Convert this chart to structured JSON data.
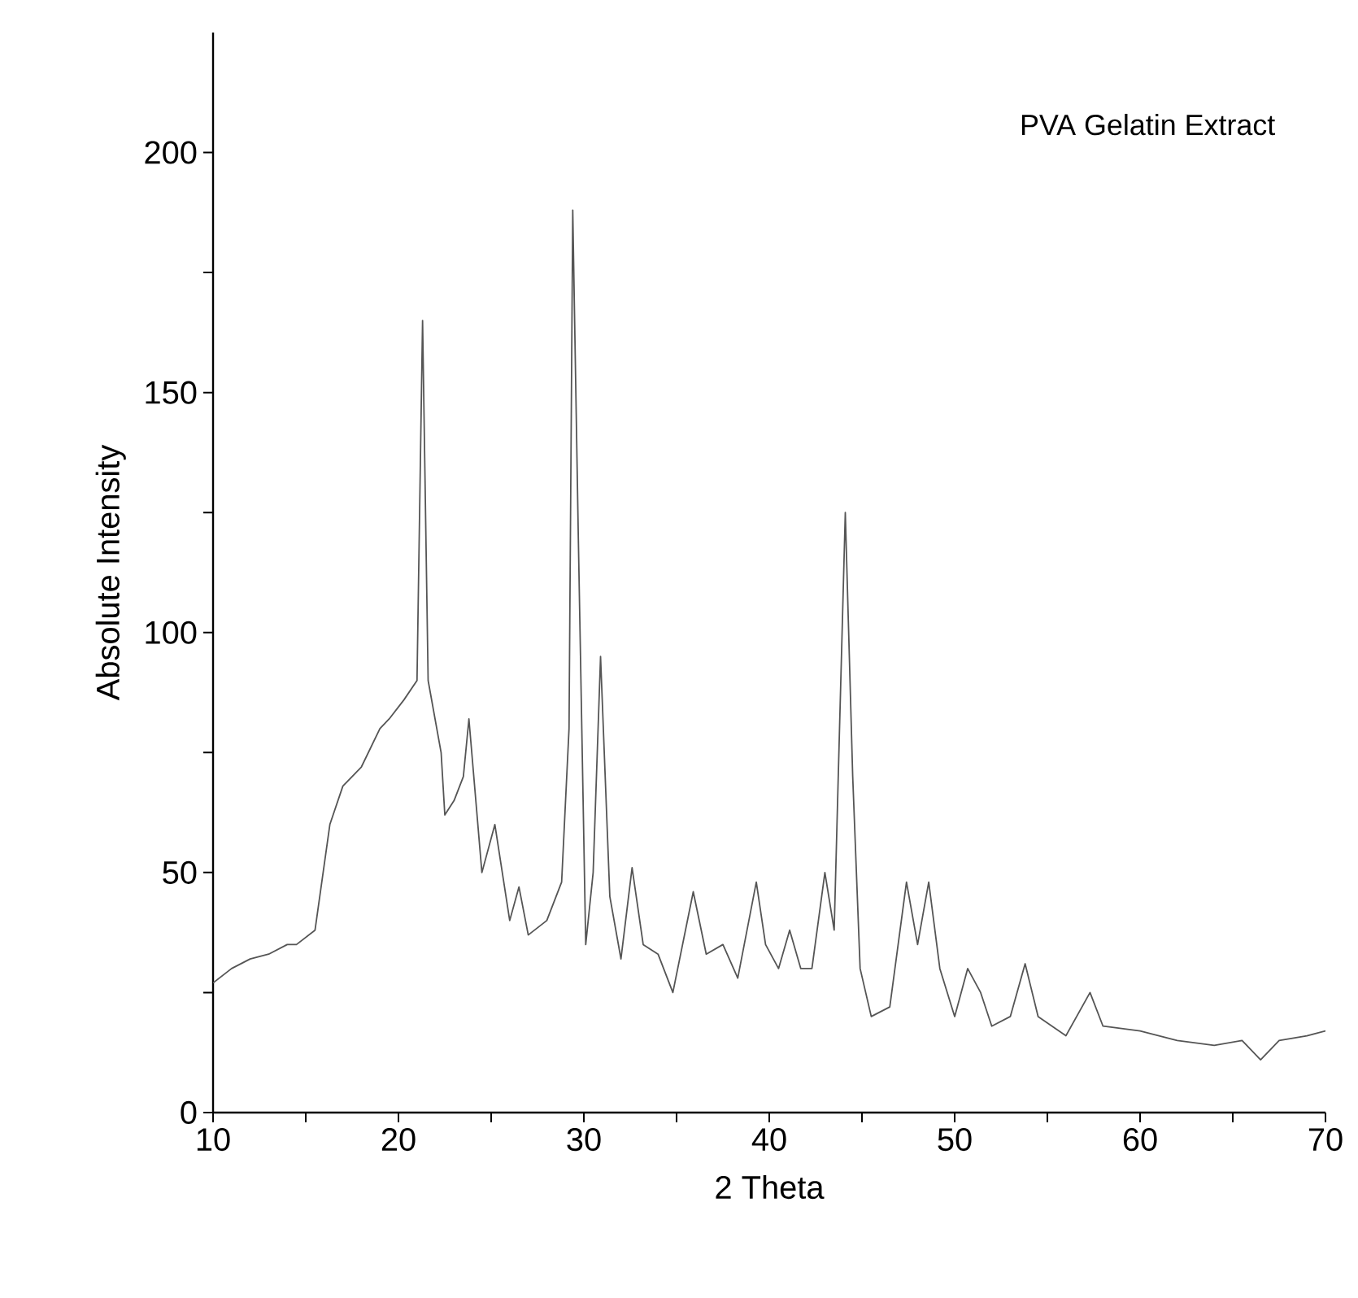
{
  "chart_data": {
    "type": "line",
    "xlabel": "2 Theta",
    "ylabel": "Absolute Intensity",
    "annotations": [
      "PVA Gelatin Extract"
    ],
    "xlim": [
      10,
      70
    ],
    "ylim": [
      0,
      225
    ],
    "xticks": [
      10,
      {
        "value": 15,
        "label": null
      },
      20,
      {
        "value": 25,
        "label": null
      },
      30,
      {
        "value": 35,
        "label": null
      },
      40,
      {
        "value": 45,
        "label": null
      },
      50,
      {
        "value": 55,
        "label": null
      },
      60,
      {
        "value": 65,
        "label": null
      },
      70
    ],
    "yticks": [
      0,
      {
        "value": 25,
        "label": null
      },
      50,
      {
        "value": 75,
        "label": null
      },
      100,
      {
        "value": 125,
        "label": null
      },
      150,
      {
        "value": 175,
        "label": null
      },
      200
    ],
    "grid": false,
    "marker": "none",
    "line_style": "solid",
    "series": [
      {
        "color": "#555555",
        "x": [
          10,
          11,
          12,
          13,
          14,
          14.5,
          15.5,
          16.3,
          17,
          18,
          19,
          19.5,
          20.3,
          21,
          21.3,
          21.6,
          22.3,
          22.5,
          23,
          23.5,
          23.8,
          24.5,
          25.2,
          26,
          26.5,
          27,
          28,
          28.8,
          29.2,
          29.4,
          29.7,
          30.1,
          30.5,
          30.9,
          31.4,
          32,
          32.6,
          33.2,
          34,
          34.8,
          35.9,
          36.6,
          37.5,
          38.3,
          39.3,
          39.8,
          40.5,
          41.1,
          41.7,
          42.3,
          43,
          43.5,
          44.1,
          44.5,
          44.9,
          45.5,
          46.5,
          47.4,
          48,
          48.6,
          49.2,
          50,
          50.7,
          51.4,
          52,
          53,
          53.8,
          54.5,
          56,
          57.3,
          58,
          60,
          62,
          64,
          65.5,
          66.5,
          67.5,
          69,
          70
        ],
        "values": [
          27,
          30,
          32,
          33,
          35,
          35,
          38,
          60,
          68,
          72,
          80,
          82,
          86,
          90,
          165,
          90,
          75,
          62,
          65,
          70,
          82,
          50,
          60,
          40,
          47,
          37,
          40,
          48,
          80,
          188,
          120,
          35,
          50,
          95,
          45,
          32,
          51,
          35,
          33,
          25,
          46,
          33,
          35,
          28,
          48,
          35,
          30,
          38,
          30,
          30,
          50,
          38,
          125,
          70,
          30,
          20,
          22,
          48,
          35,
          48,
          30,
          20,
          30,
          25,
          18,
          20,
          31,
          20,
          16,
          25,
          18,
          17,
          15,
          14,
          15,
          11,
          15,
          16,
          17
        ]
      }
    ]
  }
}
